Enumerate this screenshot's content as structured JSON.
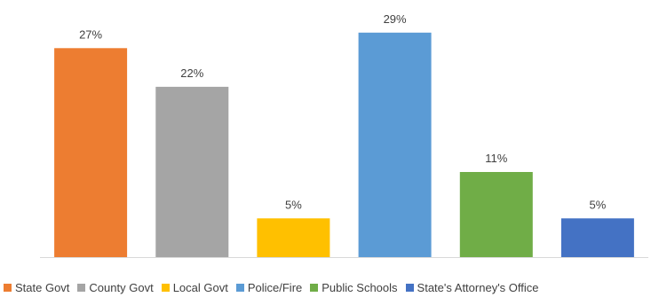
{
  "chart_data": {
    "type": "bar",
    "categories": [
      "State Govt",
      "County Govt",
      "Local Govt",
      "Police/Fire",
      "Public Schools",
      "State's Attorney's Office"
    ],
    "values": [
      27,
      22,
      5,
      29,
      11,
      5
    ],
    "value_labels": [
      "27%",
      "22%",
      "5%",
      "29%",
      "11%",
      "5%"
    ],
    "colors": [
      "#ED7D31",
      "#A5A5A5",
      "#FFC000",
      "#5B9BD5",
      "#70AD47",
      "#4472C4"
    ],
    "title": "",
    "xlabel": "",
    "ylabel": "",
    "ylim": [
      0,
      30
    ],
    "grid": false,
    "legend": "bottom",
    "baseline_color": "#D9D9D9"
  }
}
